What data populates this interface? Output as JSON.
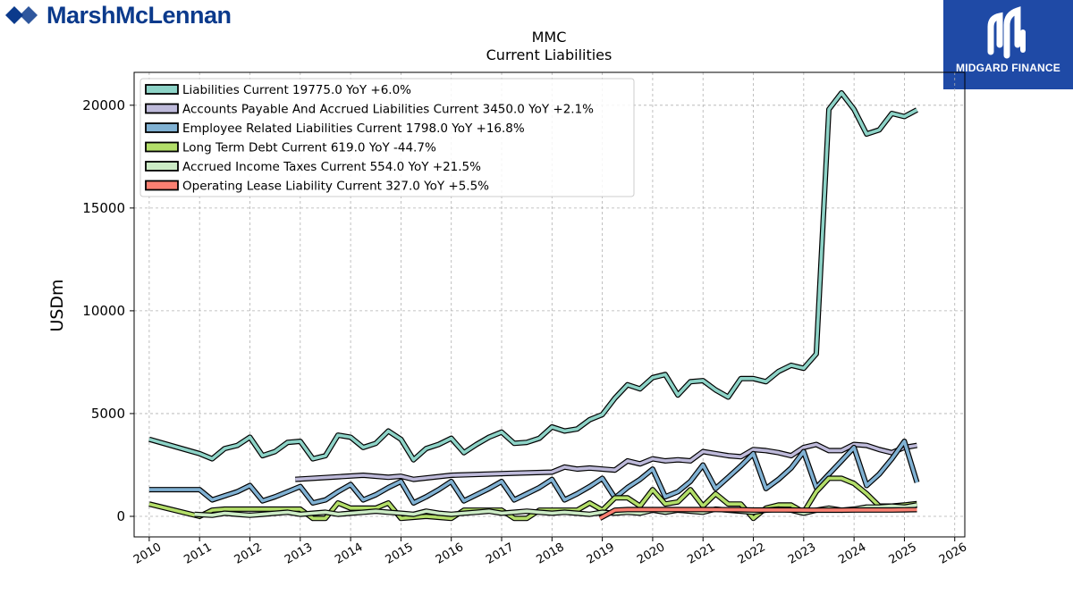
{
  "header": {
    "company": "MarshMcLennan",
    "badge": "MIDGARD FINANCE"
  },
  "chart_data": {
    "type": "line",
    "title": "MMC",
    "subtitle": "Current  Liabilities",
    "ylabel": "USDm",
    "xlabel": "",
    "xlim": [
      2009.7,
      2026.2
    ],
    "ylim": [
      -1000,
      21600
    ],
    "xticks": [
      "2010",
      "2011",
      "2012",
      "2013",
      "2014",
      "2015",
      "2016",
      "2017",
      "2018",
      "2019",
      "2020",
      "2021",
      "2022",
      "2023",
      "2024",
      "2025",
      "2026"
    ],
    "yticks": [
      "0",
      "5000",
      "10000",
      "15000",
      "20000"
    ],
    "grid": true,
    "legend_position": "top-left",
    "series": [
      {
        "name": "Liabilities Current",
        "legend": "Liabilities Current  19775.0 YoY +6.0%",
        "color": "#8dd3c7",
        "x": [
          2010.0,
          2011.0,
          2011.25,
          2011.5,
          2011.75,
          2012.0,
          2012.25,
          2012.5,
          2012.75,
          2013.0,
          2013.25,
          2013.5,
          2013.75,
          2014.0,
          2014.25,
          2014.5,
          2014.75,
          2015.0,
          2015.25,
          2015.5,
          2015.75,
          2016.0,
          2016.25,
          2016.5,
          2016.75,
          2017.0,
          2017.25,
          2017.5,
          2017.75,
          2018.0,
          2018.25,
          2018.5,
          2018.75,
          2019.0,
          2019.25,
          2019.5,
          2019.75,
          2020.0,
          2020.25,
          2020.5,
          2020.75,
          2021.0,
          2021.25,
          2021.5,
          2021.75,
          2022.0,
          2022.25,
          2022.5,
          2022.75,
          2023.0,
          2023.25,
          2023.5,
          2023.75,
          2024.0,
          2024.25,
          2024.5,
          2024.75,
          2025.0,
          2025.25
        ],
        "values": [
          3750,
          3050,
          2800,
          3300,
          3450,
          3850,
          2950,
          3150,
          3600,
          3650,
          2800,
          2950,
          3950,
          3850,
          3350,
          3550,
          4150,
          3750,
          2750,
          3300,
          3500,
          3800,
          3100,
          3500,
          3850,
          4100,
          3550,
          3600,
          3800,
          4350,
          4150,
          4250,
          4700,
          4950,
          5750,
          6400,
          6200,
          6750,
          6900,
          5900,
          6550,
          6600,
          6150,
          5800,
          6700,
          6700,
          6550,
          7050,
          7350,
          7200,
          7900,
          19800,
          20600,
          19800,
          18600,
          18800,
          19600,
          19450,
          19775
        ]
      },
      {
        "name": "Accounts Payable And Accrued Liabilities Current",
        "legend": "Accounts Payable And Accrued Liabilities Current  3450.0 YoY +2.1%",
        "color": "#bebada",
        "x": [
          2012.9,
          2014.25,
          2014.75,
          2015.0,
          2015.25,
          2016.0,
          2017.25,
          2018.0,
          2018.25,
          2018.5,
          2018.75,
          2019.0,
          2019.25,
          2019.5,
          2019.75,
          2020.0,
          2020.25,
          2020.5,
          2020.75,
          2021.0,
          2021.25,
          2021.5,
          2021.75,
          2022.0,
          2022.25,
          2022.5,
          2022.75,
          2023.0,
          2023.25,
          2023.5,
          2023.75,
          2024.0,
          2024.25,
          2024.5,
          2024.75,
          2025.0,
          2025.25
        ],
        "values": [
          1800,
          2000,
          1900,
          1950,
          1800,
          2000,
          2100,
          2150,
          2400,
          2300,
          2350,
          2300,
          2250,
          2700,
          2550,
          2800,
          2700,
          2750,
          2700,
          3150,
          3050,
          2950,
          2900,
          3250,
          3200,
          3100,
          2950,
          3350,
          3500,
          3200,
          3200,
          3500,
          3450,
          3250,
          3100,
          3350,
          3450
        ]
      },
      {
        "name": "Employee Related Liabilities Current",
        "legend": "Employee Related Liabilities Current  1798.0 YoY +16.8%",
        "color": "#80b1d3",
        "x": [
          2010.0,
          2011.0,
          2011.25,
          2011.5,
          2011.75,
          2012.0,
          2012.25,
          2012.5,
          2012.75,
          2013.0,
          2013.25,
          2013.5,
          2013.75,
          2014.0,
          2014.25,
          2014.5,
          2014.75,
          2015.0,
          2015.25,
          2015.5,
          2015.75,
          2016.0,
          2016.25,
          2016.5,
          2016.75,
          2017.0,
          2017.25,
          2017.5,
          2017.75,
          2018.0,
          2018.25,
          2018.5,
          2018.75,
          2019.0,
          2019.25,
          2019.5,
          2019.75,
          2020.0,
          2020.25,
          2020.5,
          2020.75,
          2021.0,
          2021.25,
          2021.5,
          2021.75,
          2022.0,
          2022.25,
          2022.5,
          2022.75,
          2023.0,
          2023.25,
          2023.5,
          2023.75,
          2024.0,
          2024.25,
          2024.5,
          2024.75,
          2025.0,
          2025.25
        ],
        "values": [
          1300,
          1300,
          800,
          1000,
          1200,
          1500,
          750,
          950,
          1200,
          1450,
          650,
          800,
          1200,
          1550,
          800,
          1050,
          1400,
          1700,
          650,
          950,
          1300,
          1700,
          750,
          1050,
          1350,
          1700,
          800,
          1100,
          1400,
          1800,
          800,
          1100,
          1450,
          1850,
          900,
          1400,
          1800,
          2300,
          950,
          1200,
          1700,
          2500,
          1350,
          1900,
          2450,
          3050,
          1350,
          1800,
          2350,
          3150,
          1400,
          2050,
          2700,
          3350,
          1500,
          2050,
          2800,
          3650,
          1650
        ]
      },
      {
        "name": "Long Term Debt Current",
        "legend": "Long Term Debt Current  619.0 YoY -44.7%",
        "color": "#b3de69",
        "x": [
          2010.0,
          2011.0,
          2011.25,
          2011.5,
          2011.75,
          2012.0,
          2012.25,
          2012.5,
          2012.75,
          2013.0,
          2013.25,
          2013.5,
          2013.75,
          2014.0,
          2014.25,
          2014.5,
          2014.75,
          2015.0,
          2015.25,
          2015.5,
          2015.75,
          2016.0,
          2016.25,
          2016.5,
          2016.75,
          2017.0,
          2017.25,
          2017.5,
          2017.75,
          2018.0,
          2018.25,
          2018.5,
          2018.75,
          2019.0,
          2019.25,
          2019.5,
          2019.75,
          2020.0,
          2020.25,
          2020.5,
          2020.75,
          2021.0,
          2021.25,
          2021.5,
          2021.75,
          2022.0,
          2022.25,
          2022.5,
          2022.75,
          2023.0,
          2023.25,
          2023.5,
          2023.75,
          2024.0,
          2024.25,
          2024.5,
          2024.75,
          2025.0,
          2025.25
        ],
        "values": [
          600,
          0,
          300,
          350,
          350,
          350,
          350,
          350,
          350,
          350,
          -100,
          -100,
          650,
          400,
          400,
          400,
          650,
          -100,
          -50,
          0,
          -50,
          -100,
          300,
          300,
          300,
          300,
          -100,
          -100,
          300,
          300,
          300,
          300,
          650,
          300,
          900,
          900,
          500,
          1300,
          600,
          700,
          1300,
          500,
          1100,
          600,
          600,
          -100,
          400,
          550,
          550,
          200,
          1200,
          1850,
          1850,
          1600,
          1100,
          500,
          500,
          550,
          619
        ]
      },
      {
        "name": "Accrued Income Taxes Current",
        "legend": "Accrued Income Taxes Current  554.0 YoY +21.5%",
        "color": "#ccebc5",
        "x": [
          2010.9,
          2011.25,
          2011.5,
          2011.75,
          2012.0,
          2012.25,
          2012.5,
          2012.75,
          2013.0,
          2013.25,
          2013.5,
          2013.75,
          2014.0,
          2014.25,
          2014.5,
          2014.75,
          2015.0,
          2015.25,
          2015.5,
          2015.75,
          2016.0,
          2016.25,
          2016.5,
          2016.75,
          2017.0,
          2017.25,
          2017.5,
          2017.75,
          2018.0,
          2018.25,
          2018.5,
          2018.75,
          2019.0,
          2019.25,
          2019.5,
          2019.75,
          2020.0,
          2020.25,
          2020.5,
          2020.75,
          2021.0,
          2021.25,
          2021.5,
          2021.75,
          2022.0,
          2022.25,
          2022.5,
          2022.75,
          2023.0,
          2023.25,
          2023.5,
          2023.75,
          2024.0,
          2024.25,
          2024.5,
          2024.75,
          2025.0,
          2025.25
        ],
        "values": [
          100,
          50,
          150,
          100,
          50,
          100,
          150,
          200,
          100,
          150,
          200,
          100,
          150,
          200,
          250,
          200,
          150,
          100,
          250,
          150,
          100,
          150,
          200,
          250,
          150,
          200,
          250,
          200,
          150,
          200,
          150,
          100,
          200,
          150,
          200,
          150,
          300,
          200,
          300,
          250,
          200,
          350,
          300,
          250,
          200,
          300,
          350,
          300,
          150,
          300,
          400,
          300,
          350,
          450,
          450,
          500,
          450,
          554
        ]
      },
      {
        "name": "Operating Lease Liability Current",
        "legend": "Operating Lease Liability Current  327.0 YoY +5.5%",
        "color": "#fb8072",
        "x": [
          2018.95,
          2019.25,
          2019.5,
          2019.75,
          2020.0,
          2020.25,
          2020.5,
          2020.75,
          2021.0,
          2021.25,
          2021.5,
          2021.75,
          2022.0,
          2022.25,
          2022.5,
          2022.75,
          2023.0,
          2023.25,
          2023.5,
          2023.75,
          2024.0,
          2024.25,
          2024.5,
          2024.75,
          2025.0,
          2025.25
        ],
        "values": [
          -100,
          300,
          330,
          330,
          330,
          330,
          330,
          330,
          330,
          330,
          320,
          320,
          310,
          310,
          310,
          310,
          300,
          300,
          300,
          300,
          310,
          310,
          310,
          310,
          315,
          327
        ]
      }
    ]
  }
}
